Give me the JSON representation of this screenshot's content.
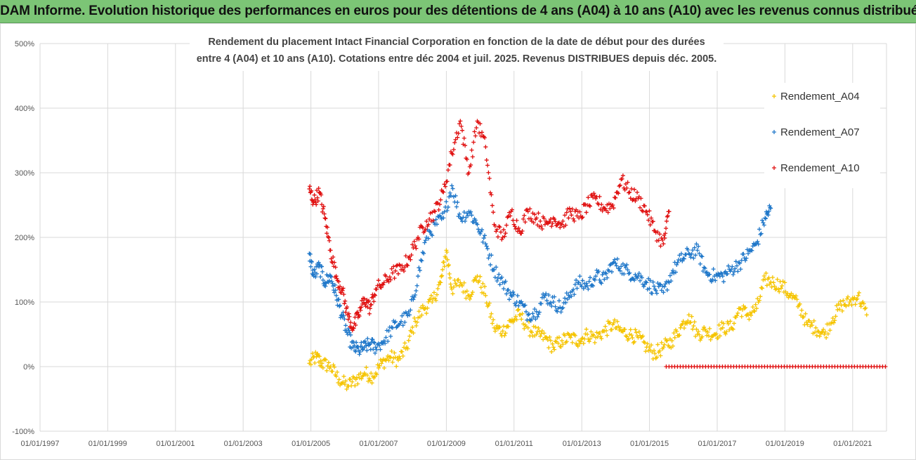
{
  "banner": {
    "title": "ADAM Informe. Evolution historique des performances en euros pour des détentions de 4 ans (A04) à 10 ans (A10) avec les revenus connus distribués"
  },
  "chart_data": {
    "type": "scatter",
    "title_lines": [
      "Rendement du placement Intact Financial Corporation en fonction de la date de début pour des durées",
      "entre 4 (A04) et 10 ans (A10). Cotations entre déc 2004 et juil. 2025. Revenus DISTRIBUES depuis déc. 2005."
    ],
    "xlabel": "",
    "ylabel": "",
    "x_ticks": [
      "01/01/1997",
      "01/01/1999",
      "01/01/2001",
      "01/01/2003",
      "01/01/2005",
      "01/01/2007",
      "01/01/2009",
      "01/01/2011",
      "01/01/2013",
      "01/01/2015",
      "01/01/2017",
      "01/01/2019",
      "01/01/2021"
    ],
    "xlim": [
      "1997-01-01",
      "2022-01-01"
    ],
    "y_ticks": [
      "-100%",
      "0%",
      "100%",
      "200%",
      "300%",
      "400%",
      "500%"
    ],
    "ylim": [
      -100,
      500
    ],
    "grid": true,
    "legend_position": "right",
    "series": [
      {
        "name": "Rendement_A04",
        "color": "#f5c400",
        "x": [
          "2004-12-15",
          "2005-03-01",
          "2005-05-01",
          "2005-08-01",
          "2005-11-01",
          "2006-02-01",
          "2006-05-01",
          "2006-08-01",
          "2006-11-01",
          "2007-02-01",
          "2007-05-01",
          "2007-08-01",
          "2007-11-01",
          "2008-02-01",
          "2008-05-01",
          "2008-08-01",
          "2008-11-01",
          "2009-01-01",
          "2009-03-01",
          "2009-06-01",
          "2009-09-01",
          "2009-12-01",
          "2010-03-01",
          "2010-06-01",
          "2010-09-01",
          "2010-12-01",
          "2011-03-01",
          "2011-06-01",
          "2011-09-01",
          "2011-12-01",
          "2012-03-01",
          "2012-06-01",
          "2012-09-01",
          "2012-12-01",
          "2013-03-01",
          "2013-06-01",
          "2013-09-01",
          "2013-12-01",
          "2014-03-01",
          "2014-06-01",
          "2014-09-01",
          "2014-12-01",
          "2015-03-01",
          "2015-06-01",
          "2015-09-01",
          "2015-12-01",
          "2016-03-01",
          "2016-06-01",
          "2016-09-01",
          "2016-12-01",
          "2017-03-01",
          "2017-06-01",
          "2017-09-01",
          "2017-12-01",
          "2018-03-01",
          "2018-06-01",
          "2018-09-01",
          "2018-12-01",
          "2019-03-01",
          "2019-06-01",
          "2019-09-01",
          "2019-12-01",
          "2020-03-01",
          "2020-06-01",
          "2020-09-01",
          "2020-12-01",
          "2021-03-01",
          "2021-06-01"
        ],
        "y": [
          5,
          15,
          5,
          0,
          -20,
          -30,
          -20,
          -10,
          -15,
          5,
          15,
          10,
          30,
          70,
          90,
          100,
          130,
          180,
          120,
          130,
          110,
          140,
          110,
          60,
          55,
          70,
          80,
          60,
          50,
          45,
          30,
          40,
          45,
          40,
          50,
          45,
          55,
          65,
          55,
          50,
          45,
          30,
          20,
          30,
          40,
          60,
          80,
          50,
          55,
          50,
          60,
          60,
          90,
          80,
          90,
          135,
          130,
          125,
          110,
          95,
          65,
          60,
          50,
          75,
          95,
          100,
          110,
          80
        ]
      },
      {
        "name": "Rendement_A07",
        "color": "#1f77c9",
        "x": [
          "2004-12-15",
          "2005-02-01",
          "2005-04-01",
          "2005-06-01",
          "2005-08-01",
          "2005-10-01",
          "2005-12-01",
          "2006-02-01",
          "2006-04-01",
          "2006-06-01",
          "2006-08-01",
          "2006-10-01",
          "2006-12-01",
          "2007-03-01",
          "2007-06-01",
          "2007-09-01",
          "2007-12-01",
          "2008-03-01",
          "2008-06-01",
          "2008-09-01",
          "2008-12-01",
          "2009-03-01",
          "2009-06-01",
          "2009-09-01",
          "2009-12-01",
          "2010-03-01",
          "2010-06-01",
          "2010-09-01",
          "2010-12-01",
          "2011-03-01",
          "2011-06-01",
          "2011-09-01",
          "2011-12-01",
          "2012-03-01",
          "2012-06-01",
          "2012-09-01",
          "2012-12-01",
          "2013-03-01",
          "2013-06-01",
          "2013-09-01",
          "2013-12-01",
          "2014-03-01",
          "2014-06-01",
          "2014-09-01",
          "2014-12-01",
          "2015-03-01",
          "2015-06-01",
          "2015-09-01",
          "2015-12-01",
          "2016-03-01",
          "2016-06-01",
          "2016-09-01",
          "2016-12-01",
          "2017-03-01",
          "2017-06-01",
          "2017-09-01",
          "2017-12-01",
          "2018-03-01",
          "2018-06-01",
          "2018-08-01"
        ],
        "y": [
          175,
          140,
          155,
          130,
          140,
          110,
          80,
          50,
          30,
          25,
          30,
          35,
          30,
          40,
          60,
          70,
          80,
          140,
          200,
          220,
          230,
          280,
          230,
          240,
          220,
          190,
          150,
          130,
          110,
          100,
          80,
          85,
          110,
          100,
          90,
          115,
          130,
          125,
          140,
          135,
          160,
          155,
          145,
          140,
          130,
          120,
          115,
          145,
          165,
          175,
          180,
          145,
          140,
          140,
          150,
          160,
          175,
          190,
          230,
          245
        ]
      },
      {
        "name": "Rendement_A10",
        "color": "#e01010",
        "x": [
          "2004-12-15",
          "2005-02-01",
          "2005-04-01",
          "2005-06-01",
          "2005-08-01",
          "2005-10-01",
          "2005-12-01",
          "2006-02-01",
          "2006-04-01",
          "2006-06-01",
          "2006-08-01",
          "2006-10-01",
          "2006-12-01",
          "2007-03-01",
          "2007-06-01",
          "2007-09-01",
          "2007-12-01",
          "2008-03-01",
          "2008-06-01",
          "2008-09-01",
          "2008-12-01",
          "2009-03-01",
          "2009-06-01",
          "2009-09-01",
          "2009-12-01",
          "2010-03-01",
          "2010-06-01",
          "2010-09-01",
          "2010-12-01",
          "2011-03-01",
          "2011-06-01",
          "2011-09-01",
          "2011-12-01",
          "2012-03-01",
          "2012-06-01",
          "2012-09-01",
          "2012-12-01",
          "2013-03-01",
          "2013-06-01",
          "2013-09-01",
          "2013-12-01",
          "2014-03-01",
          "2014-06-01",
          "2014-09-01",
          "2014-12-01",
          "2015-03-01",
          "2015-06-01",
          "2015-08-01"
        ],
        "y": [
          275,
          255,
          270,
          230,
          180,
          140,
          120,
          80,
          60,
          80,
          105,
          90,
          120,
          130,
          145,
          150,
          170,
          200,
          225,
          240,
          270,
          330,
          380,
          300,
          380,
          340,
          220,
          200,
          240,
          210,
          240,
          230,
          220,
          230,
          220,
          240,
          230,
          250,
          260,
          245,
          250,
          290,
          270,
          260,
          240,
          210,
          190,
          240
        ]
      },
      {
        "name": "",
        "color": "#e01010",
        "x": [
          "2015-07-01",
          "2021-12-31"
        ],
        "y": [
          0,
          0
        ],
        "flat_line": true
      }
    ]
  }
}
